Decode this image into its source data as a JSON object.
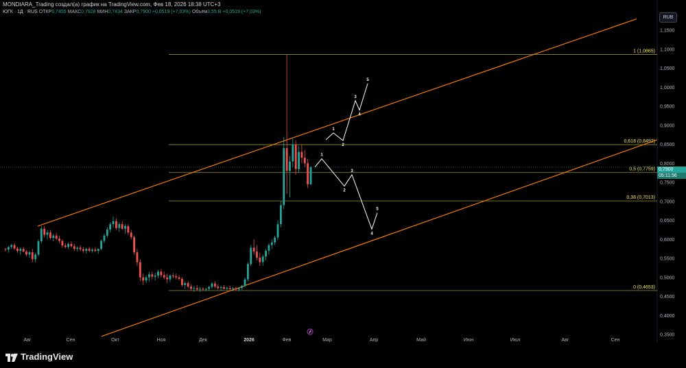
{
  "header": {
    "title": "MONDIARA_Trading создал(а) график на TradingView.com, Фев 18, 2026 18:38 UTC+3",
    "symbol": "ЮГК · 1Д · RUS",
    "open_label": "ОТКР",
    "open_value": "0,7455",
    "high_label": "МАКС",
    "high_value": "0,7928",
    "low_label": "МИН",
    "low_value": "0,7434",
    "close_label": "ЗАКР",
    "close_value": "0,7900",
    "change": "+0,0519 (+7,03%)",
    "volume_label": "Объём",
    "volume_value": "3,55 B",
    "volume_change": "+0,0519 (+7,03%)"
  },
  "currency": "RUB",
  "price_tag": {
    "price": "0,7900",
    "timer": "05:11:56"
  },
  "logo_text": "TradingView",
  "colors": {
    "background": "#000000",
    "up": "#26a69a",
    "down": "#ef5350",
    "channel": "#f57c00",
    "fib": "#c9c74a",
    "fib_label": "#f5e663",
    "wave": "#ffffff"
  },
  "chart_data": {
    "type": "candlestick",
    "title": "",
    "xlabel": "",
    "ylabel": "",
    "ylim": [
      0.35,
      1.19
    ],
    "y_ticks": [
      "1,1500",
      "1,1000",
      "1,0500",
      "1,0000",
      "0,9500",
      "0,9000",
      "0,8500",
      "0,8000",
      "0,7500",
      "0,7000",
      "0,6500",
      "0,6000",
      "0,5500",
      "0,5000",
      "0,4500",
      "0,4000",
      "0,3500"
    ],
    "x_ticks": [
      "Авг",
      "Сен",
      "Окт",
      "Ноя",
      "Дек",
      "2026",
      "Фев",
      "Мар",
      "Апр",
      "Май",
      "Июн",
      "Июл",
      "Авг",
      "Сен"
    ],
    "grid": false,
    "fib_levels": [
      {
        "label": "1 (1,0865)",
        "value": 1.0865
      },
      {
        "label": "0,618 (0,8492)",
        "value": 0.8492
      },
      {
        "label": "0,5 (0,7759)",
        "value": 0.7759
      },
      {
        "label": "0,38 (0,7013)",
        "value": 0.7013
      },
      {
        "label": "0 (0,4653)",
        "value": 0.4653
      }
    ],
    "channel": [
      {
        "name": "upper",
        "from": {
          "x": 55,
          "y": 0.635
        },
        "to": {
          "x": 928,
          "y": 1.18
        }
      },
      {
        "name": "lower",
        "from": {
          "x": 148,
          "y": 0.345
        },
        "to": {
          "x": 958,
          "y": 0.862
        }
      }
    ],
    "waves": [
      {
        "name": "bullish",
        "points": [
          {
            "x": 475,
            "y": 0.862,
            "label": ""
          },
          {
            "x": 486,
            "y": 0.88,
            "label": "1"
          },
          {
            "x": 500,
            "y": 0.86,
            "label": "2"
          },
          {
            "x": 518,
            "y": 0.965,
            "label": "3"
          },
          {
            "x": 524,
            "y": 0.94,
            "label": "4"
          },
          {
            "x": 536,
            "y": 1.01,
            "label": "5"
          }
        ]
      },
      {
        "name": "bearish",
        "points": [
          {
            "x": 459,
            "y": 0.79,
            "label": ""
          },
          {
            "x": 469,
            "y": 0.812,
            "label": "1"
          },
          {
            "x": 502,
            "y": 0.74,
            "label": "2"
          },
          {
            "x": 513,
            "y": 0.77,
            "label": "3"
          },
          {
            "x": 542,
            "y": 0.627,
            "label": "4"
          },
          {
            "x": 550,
            "y": 0.67,
            "label": "5"
          }
        ]
      }
    ],
    "candles": [
      [
        0.575,
        0.578,
        0.568,
        0.573
      ],
      [
        0.573,
        0.582,
        0.565,
        0.58
      ],
      [
        0.58,
        0.588,
        0.575,
        0.585
      ],
      [
        0.585,
        0.59,
        0.572,
        0.576
      ],
      [
        0.576,
        0.58,
        0.565,
        0.57
      ],
      [
        0.57,
        0.579,
        0.56,
        0.575
      ],
      [
        0.575,
        0.58,
        0.566,
        0.568
      ],
      [
        0.568,
        0.572,
        0.555,
        0.56
      ],
      [
        0.56,
        0.57,
        0.552,
        0.566
      ],
      [
        0.566,
        0.575,
        0.54,
        0.548
      ],
      [
        0.548,
        0.565,
        0.54,
        0.56
      ],
      [
        0.56,
        0.6,
        0.555,
        0.595
      ],
      [
        0.595,
        0.635,
        0.59,
        0.628
      ],
      [
        0.628,
        0.635,
        0.605,
        0.612
      ],
      [
        0.612,
        0.625,
        0.6,
        0.618
      ],
      [
        0.618,
        0.625,
        0.6,
        0.604
      ],
      [
        0.604,
        0.615,
        0.595,
        0.61
      ],
      [
        0.61,
        0.618,
        0.598,
        0.602
      ],
      [
        0.602,
        0.61,
        0.59,
        0.596
      ],
      [
        0.596,
        0.6,
        0.578,
        0.584
      ],
      [
        0.584,
        0.59,
        0.576,
        0.58
      ],
      [
        0.58,
        0.592,
        0.575,
        0.588
      ],
      [
        0.588,
        0.595,
        0.578,
        0.582
      ],
      [
        0.582,
        0.588,
        0.57,
        0.575
      ],
      [
        0.575,
        0.582,
        0.568,
        0.578
      ],
      [
        0.578,
        0.585,
        0.57,
        0.574
      ],
      [
        0.574,
        0.58,
        0.565,
        0.57
      ],
      [
        0.57,
        0.578,
        0.562,
        0.575
      ],
      [
        0.575,
        0.58,
        0.566,
        0.57
      ],
      [
        0.57,
        0.577,
        0.565,
        0.573
      ],
      [
        0.573,
        0.58,
        0.566,
        0.57
      ],
      [
        0.57,
        0.576,
        0.562,
        0.575
      ],
      [
        0.575,
        0.6,
        0.572,
        0.596
      ],
      [
        0.596,
        0.615,
        0.59,
        0.61
      ],
      [
        0.61,
        0.632,
        0.605,
        0.626
      ],
      [
        0.626,
        0.645,
        0.618,
        0.64
      ],
      [
        0.64,
        0.66,
        0.63,
        0.648
      ],
      [
        0.648,
        0.655,
        0.625,
        0.63
      ],
      [
        0.63,
        0.645,
        0.62,
        0.64
      ],
      [
        0.64,
        0.648,
        0.625,
        0.628
      ],
      [
        0.628,
        0.64,
        0.615,
        0.635
      ],
      [
        0.635,
        0.64,
        0.612,
        0.618
      ],
      [
        0.618,
        0.625,
        0.6,
        0.606
      ],
      [
        0.606,
        0.61,
        0.56,
        0.566
      ],
      [
        0.566,
        0.575,
        0.53,
        0.54
      ],
      [
        0.54,
        0.548,
        0.49,
        0.5
      ],
      [
        0.5,
        0.51,
        0.48,
        0.492
      ],
      [
        0.492,
        0.505,
        0.485,
        0.5
      ],
      [
        0.5,
        0.515,
        0.49,
        0.508
      ],
      [
        0.508,
        0.515,
        0.495,
        0.502
      ],
      [
        0.502,
        0.512,
        0.492,
        0.505
      ],
      [
        0.505,
        0.52,
        0.498,
        0.515
      ],
      [
        0.515,
        0.522,
        0.5,
        0.506
      ],
      [
        0.506,
        0.515,
        0.495,
        0.5
      ],
      [
        0.5,
        0.51,
        0.485,
        0.495
      ],
      [
        0.495,
        0.508,
        0.488,
        0.505
      ],
      [
        0.505,
        0.512,
        0.498,
        0.503
      ],
      [
        0.503,
        0.51,
        0.495,
        0.5
      ],
      [
        0.5,
        0.506,
        0.492,
        0.496
      ],
      [
        0.496,
        0.5,
        0.475,
        0.48
      ],
      [
        0.48,
        0.49,
        0.47,
        0.485
      ],
      [
        0.485,
        0.49,
        0.472,
        0.476
      ],
      [
        0.476,
        0.482,
        0.465,
        0.47
      ],
      [
        0.47,
        0.478,
        0.462,
        0.472
      ],
      [
        0.472,
        0.48,
        0.466,
        0.468
      ],
      [
        0.468,
        0.475,
        0.462,
        0.47
      ],
      [
        0.47,
        0.474,
        0.465,
        0.468
      ],
      [
        0.468,
        0.472,
        0.463,
        0.47
      ],
      [
        0.47,
        0.478,
        0.466,
        0.475
      ],
      [
        0.475,
        0.488,
        0.47,
        0.484
      ],
      [
        0.484,
        0.49,
        0.472,
        0.476
      ],
      [
        0.476,
        0.482,
        0.468,
        0.472
      ],
      [
        0.472,
        0.478,
        0.466,
        0.474
      ],
      [
        0.474,
        0.48,
        0.468,
        0.47
      ],
      [
        0.47,
        0.476,
        0.465,
        0.472
      ],
      [
        0.472,
        0.478,
        0.467,
        0.469
      ],
      [
        0.469,
        0.475,
        0.464,
        0.471
      ],
      [
        0.471,
        0.476,
        0.466,
        0.468
      ],
      [
        0.468,
        0.474,
        0.463,
        0.472
      ],
      [
        0.472,
        0.48,
        0.468,
        0.478
      ],
      [
        0.478,
        0.5,
        0.474,
        0.495
      ],
      [
        0.495,
        0.54,
        0.49,
        0.535
      ],
      [
        0.535,
        0.585,
        0.53,
        0.578
      ],
      [
        0.578,
        0.6,
        0.56,
        0.568
      ],
      [
        0.568,
        0.585,
        0.545,
        0.552
      ],
      [
        0.552,
        0.565,
        0.53,
        0.54
      ],
      [
        0.54,
        0.56,
        0.53,
        0.555
      ],
      [
        0.555,
        0.575,
        0.545,
        0.57
      ],
      [
        0.57,
        0.59,
        0.56,
        0.585
      ],
      [
        0.585,
        0.6,
        0.575,
        0.592
      ],
      [
        0.592,
        0.61,
        0.585,
        0.605
      ],
      [
        0.605,
        0.65,
        0.598,
        0.64
      ],
      [
        0.64,
        0.7,
        0.632,
        0.69
      ],
      [
        0.69,
        0.87,
        0.68,
        0.84
      ],
      [
        0.84,
        1.0865,
        0.72,
        0.78
      ],
      [
        0.78,
        0.82,
        0.71,
        0.805
      ],
      [
        0.805,
        0.865,
        0.79,
        0.85
      ],
      [
        0.85,
        0.86,
        0.77,
        0.785
      ],
      [
        0.785,
        0.845,
        0.775,
        0.83
      ],
      [
        0.83,
        0.85,
        0.8,
        0.815
      ],
      [
        0.815,
        0.835,
        0.79,
        0.8
      ],
      [
        0.8,
        0.812,
        0.735,
        0.745
      ],
      [
        0.745,
        0.793,
        0.743,
        0.79
      ]
    ]
  }
}
